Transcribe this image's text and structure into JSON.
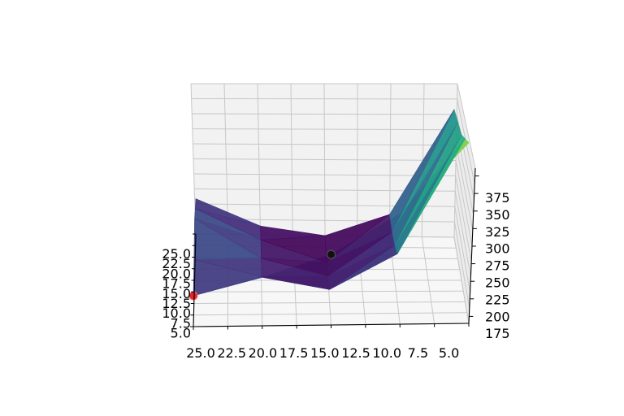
{
  "chart_data": {
    "type": "surface3d",
    "title": "",
    "xlabel": "",
    "ylabel": "",
    "zlabel": "",
    "colormap": "viridis",
    "x_ticks": [
      "25.0",
      "22.5",
      "20.0",
      "17.5",
      "15.0",
      "12.5",
      "10.0",
      "7.5",
      "5.0"
    ],
    "y_ticks": [
      "25.0",
      "22.5",
      "20.0",
      "17.5",
      "15.0",
      "12.5",
      "10.0",
      "7.5",
      "5.0"
    ],
    "z_ticks": [
      "375",
      "350",
      "325",
      "300",
      "275",
      "250",
      "225",
      "200",
      "175"
    ],
    "x": [
      25,
      20,
      15,
      10,
      5
    ],
    "y": [
      25,
      20,
      15,
      10,
      5
    ],
    "z": [
      [
        210,
        230,
        255,
        300,
        380
      ],
      [
        225,
        205,
        190,
        230,
        360
      ],
      [
        245,
        200,
        180,
        215,
        340
      ],
      [
        230,
        195,
        170,
        205,
        330
      ],
      [
        215,
        185,
        175,
        200,
        320
      ]
    ],
    "zlim": [
      175,
      390
    ],
    "points": [
      {
        "label": "black-marker",
        "x": 15,
        "y": 25,
        "z": 255,
        "color": "#111111"
      },
      {
        "label": "red-marker",
        "x": 25,
        "y": 25,
        "z": 210,
        "color": "#e3242b"
      }
    ],
    "grid": true
  }
}
